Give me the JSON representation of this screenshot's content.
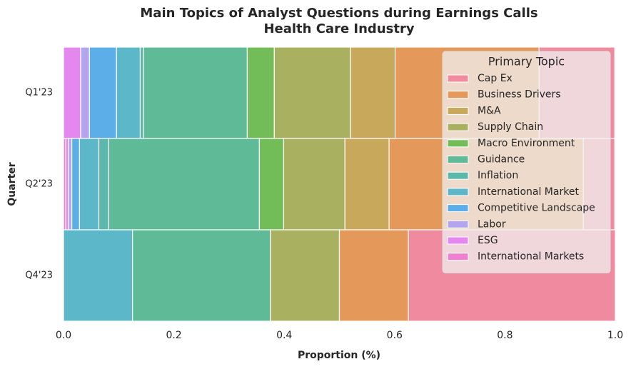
{
  "chart_data": {
    "type": "stacked_barh",
    "title": "Main Topics of Analyst Questions during Earnings Calls",
    "subtitle": "Health Care Industry",
    "x_label": "Proportion (%)",
    "y_label": "Quarter",
    "categories": [
      "Q1'23",
      "Q2'23",
      "Q4'23"
    ],
    "xlim": [
      0,
      1
    ],
    "xticks": [
      {
        "value": 0,
        "label": "0.0"
      },
      0.2,
      0.4,
      0.6,
      0.8,
      {
        "value": 1,
        "label": "1.0"
      }
    ],
    "legend_title": "Primary Topic",
    "legend_position": "upper right",
    "series": [
      {
        "name": "Cap Ex",
        "color": "#f08a9e",
        "values": [
          0.137,
          0.057,
          0.375
        ]
      },
      {
        "name": "Business Drivers",
        "color": "#e4995a",
        "values": [
          0.261,
          0.352,
          0.125
        ]
      },
      {
        "name": "M&A",
        "color": "#c8a95c",
        "values": [
          0.081,
          0.08,
          0
        ]
      },
      {
        "name": "Supply Chain",
        "color": "#a9b060",
        "values": [
          0.138,
          0.111,
          0.125
        ]
      },
      {
        "name": "Macro Environment",
        "color": "#73bd58",
        "values": [
          0.049,
          0.044,
          0
        ]
      },
      {
        "name": "Guidance",
        "color": "#5fbb97",
        "values": [
          0.188,
          0.273,
          0.25
        ]
      },
      {
        "name": "Inflation",
        "color": "#5cb8ab",
        "values": [
          0.006,
          0.018,
          0
        ]
      },
      {
        "name": "International Market",
        "color": "#5cb7c9",
        "values": [
          0.043,
          0.035,
          0.125
        ]
      },
      {
        "name": "Competitive Landscape",
        "color": "#5caee8",
        "values": [
          0.049,
          0.014,
          0
        ]
      },
      {
        "name": "Labor",
        "color": "#b3a5ee",
        "values": [
          0.016,
          0.006,
          0
        ]
      },
      {
        "name": "ESG",
        "color": "#e487ef",
        "values": [
          0.031,
          0.005,
          0
        ]
      },
      {
        "name": "International Markets",
        "color": "#ef80cf",
        "values": [
          0,
          0.004,
          0
        ]
      }
    ]
  }
}
